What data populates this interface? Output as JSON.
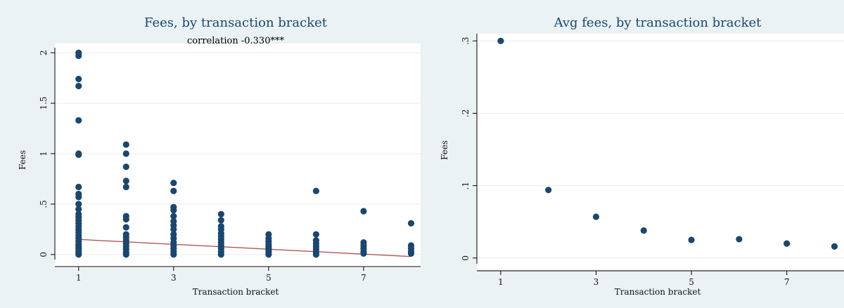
{
  "colors": {
    "marker": "#1a476f",
    "fit_line": "#b05656",
    "grid": "#e8eef0",
    "plot_bg": "#ffffff",
    "frame_bg": "#eaf2f3"
  },
  "chart_data": [
    {
      "type": "scatter",
      "title": "Fees, by transaction bracket",
      "subtitle": "correlation -0.330***",
      "xlabel": "Transaction bracket",
      "ylabel": "Fees",
      "xticks": [
        "1",
        "3",
        "5",
        "7"
      ],
      "yticks": [
        "0",
        ".5",
        "1",
        "1.5",
        "2"
      ],
      "xlim": [
        0.5,
        8.2
      ],
      "ylim": [
        -0.05,
        2.05
      ],
      "grid": true,
      "points": {
        "1": [
          2.0,
          1.97,
          1.74,
          1.67,
          1.33,
          1.0,
          0.99,
          0.67,
          0.6,
          0.57,
          0.5,
          0.45,
          0.4,
          0.37,
          0.34,
          0.31,
          0.28,
          0.25,
          0.22,
          0.19,
          0.16,
          0.13,
          0.1,
          0.08,
          0.06,
          0.04,
          0.02,
          0.0
        ],
        "2": [
          1.09,
          1.0,
          0.87,
          0.73,
          0.67,
          0.38,
          0.35,
          0.27,
          0.2,
          0.17,
          0.14,
          0.11,
          0.08,
          0.05,
          0.02,
          0.0
        ],
        "3": [
          0.71,
          0.63,
          0.47,
          0.44,
          0.38,
          0.33,
          0.29,
          0.25,
          0.2,
          0.16,
          0.12,
          0.09,
          0.06,
          0.03,
          0.0
        ],
        "4": [
          0.4,
          0.34,
          0.28,
          0.25,
          0.21,
          0.18,
          0.15,
          0.12,
          0.09,
          0.06,
          0.03,
          0.0
        ],
        "5": [
          0.2,
          0.16,
          0.13,
          0.1,
          0.08,
          0.06,
          0.04,
          0.02,
          0.0
        ],
        "6": [
          0.63,
          0.2,
          0.14,
          0.11,
          0.08,
          0.05,
          0.02,
          0.0
        ],
        "7": [
          0.43,
          0.12,
          0.09,
          0.06,
          0.03,
          0.01
        ],
        "8": [
          0.31,
          0.09,
          0.06,
          0.03,
          0.01
        ]
      },
      "fit_line": {
        "x": [
          1,
          8
        ],
        "y": [
          0.15,
          -0.02
        ]
      }
    },
    {
      "type": "scatter",
      "title": "Avg fees, by transaction bracket",
      "xlabel": "Transaction bracket",
      "ylabel": "Fees",
      "xticks": [
        "1",
        "3",
        "5",
        "7"
      ],
      "yticks": [
        "0",
        ".1",
        ".2",
        ".3"
      ],
      "xlim": [
        0.5,
        8.2
      ],
      "ylim": [
        -0.008,
        0.31
      ],
      "grid": true,
      "x": [
        1,
        2,
        3,
        4,
        5,
        6,
        7,
        8
      ],
      "y": [
        0.3,
        0.094,
        0.057,
        0.038,
        0.025,
        0.026,
        0.02,
        0.016
      ]
    }
  ]
}
